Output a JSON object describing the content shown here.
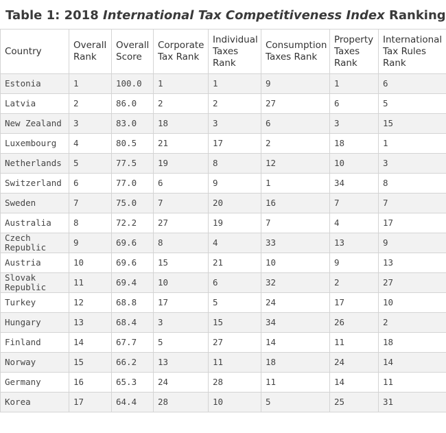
{
  "title": {
    "prefix": "Table 1: 2018",
    "emphasis": "International Tax Competitiveness Index",
    "suffix": "Rankings"
  },
  "table": {
    "headers": [
      "Country",
      "Overall Rank",
      "Overall Score",
      "Corporate Tax Rank",
      "Individual Taxes Rank",
      "Consumption Taxes Rank",
      "Property Taxes Rank",
      "International Tax Rules Rank"
    ],
    "rows": [
      [
        "Estonia",
        "1",
        "100.0",
        "1",
        "1",
        "9",
        "1",
        "6"
      ],
      [
        "Latvia",
        "2",
        "86.0",
        "2",
        "2",
        "27",
        "6",
        "5"
      ],
      [
        "New Zealand",
        "3",
        "83.0",
        "18",
        "3",
        "6",
        "3",
        "15"
      ],
      [
        "Luxembourg",
        "4",
        "80.5",
        "21",
        "17",
        "2",
        "18",
        "1"
      ],
      [
        "Netherlands",
        "5",
        "77.5",
        "19",
        "8",
        "12",
        "10",
        "3"
      ],
      [
        "Switzerland",
        "6",
        "77.0",
        "6",
        "9",
        "1",
        "34",
        "8"
      ],
      [
        "Sweden",
        "7",
        "75.0",
        "7",
        "20",
        "16",
        "7",
        "7"
      ],
      [
        "Australia",
        "8",
        "72.2",
        "27",
        "19",
        "7",
        "4",
        "17"
      ],
      [
        "Czech Republic",
        "9",
        "69.6",
        "8",
        "4",
        "33",
        "13",
        "9"
      ],
      [
        "Austria",
        "10",
        "69.6",
        "15",
        "21",
        "10",
        "9",
        "13"
      ],
      [
        "Slovak Republic",
        "11",
        "69.4",
        "10",
        "6",
        "32",
        "2",
        "27"
      ],
      [
        "Turkey",
        "12",
        "68.8",
        "17",
        "5",
        "24",
        "17",
        "10"
      ],
      [
        "Hungary",
        "13",
        "68.4",
        "3",
        "15",
        "34",
        "26",
        "2"
      ],
      [
        "Finland",
        "14",
        "67.7",
        "5",
        "27",
        "14",
        "11",
        "18"
      ],
      [
        "Norway",
        "15",
        "66.2",
        "13",
        "11",
        "18",
        "24",
        "14"
      ],
      [
        "Germany",
        "16",
        "65.3",
        "24",
        "28",
        "11",
        "14",
        "11"
      ],
      [
        "Korea",
        "17",
        "64.4",
        "28",
        "10",
        "5",
        "25",
        "31"
      ]
    ]
  }
}
